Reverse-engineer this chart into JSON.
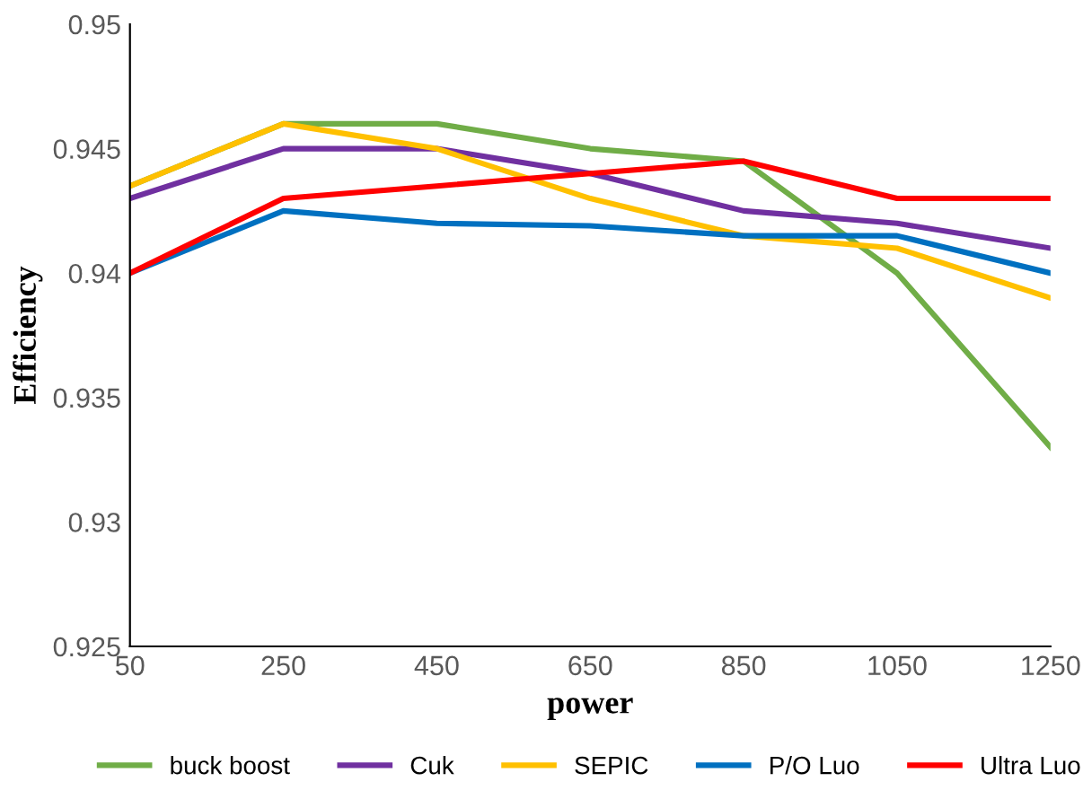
{
  "chart_data": {
    "type": "line",
    "xlabel": "power",
    "ylabel": "Efficiency",
    "categories": [
      "50",
      "250",
      "450",
      "650",
      "850",
      "1050",
      "1250"
    ],
    "series": [
      {
        "name": "buck boost",
        "color": "#70ad47",
        "values": [
          0.9435,
          0.946,
          0.946,
          0.945,
          0.9445,
          0.94,
          0.933
        ]
      },
      {
        "name": "Cuk",
        "color": "#7030a0",
        "values": [
          0.943,
          0.945,
          0.945,
          0.944,
          0.9425,
          0.942,
          0.941
        ]
      },
      {
        "name": "SEPIC",
        "color": "#ffc000",
        "values": [
          0.9435,
          0.946,
          0.945,
          0.943,
          0.9415,
          0.941,
          0.939
        ]
      },
      {
        "name": "P/O Luo",
        "color": "#0070c0",
        "values": [
          0.94,
          0.9425,
          0.942,
          0.9419,
          0.9415,
          0.9415,
          0.94
        ]
      },
      {
        "name": "Ultra Luo",
        "color": "#ff0000",
        "values": [
          0.94,
          0.943,
          0.9435,
          0.944,
          0.9445,
          0.943,
          0.943
        ]
      }
    ],
    "ylim": [
      0.925,
      0.95
    ],
    "yticks": [
      0.925,
      0.93,
      0.935,
      0.94,
      0.945,
      0.95
    ],
    "grid": false,
    "legend": "bottom",
    "marker": "none",
    "line_style": "solid"
  }
}
